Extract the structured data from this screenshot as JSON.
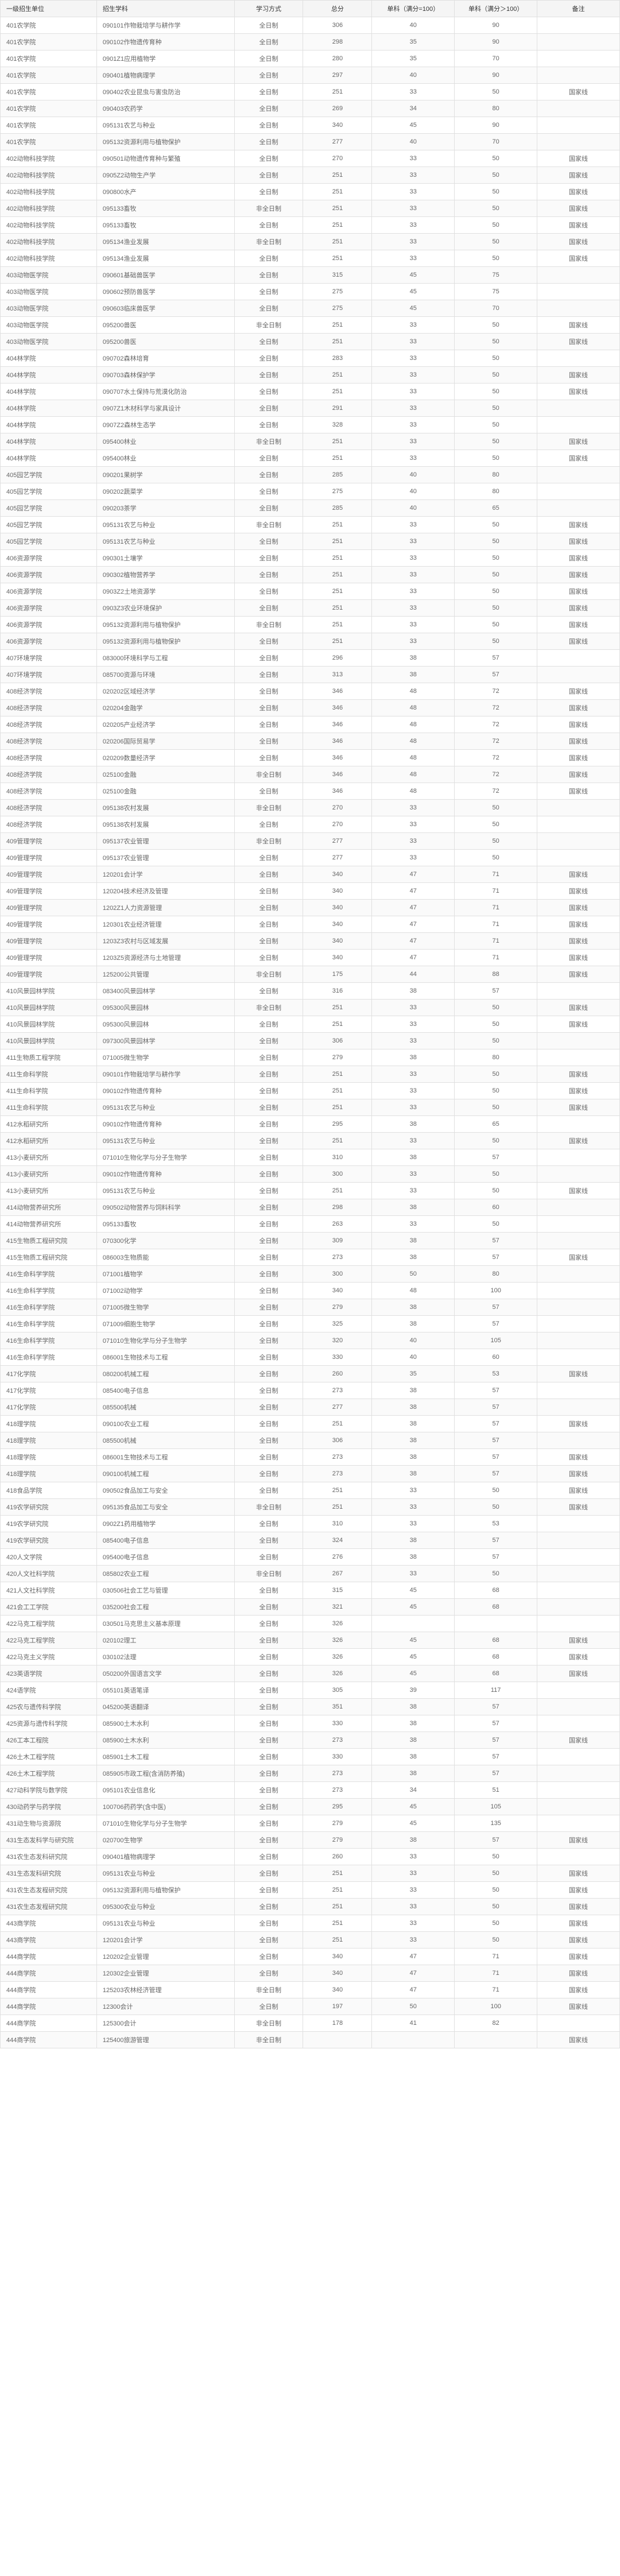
{
  "headers": [
    "一级招生单位",
    "招生学科",
    "学习方式",
    "总分",
    "单科（满分=100）",
    "单科（满分＞100）",
    "备注"
  ],
  "rows": [
    [
      "401农学院",
      "090101作物栽培学与耕作学",
      "全日制",
      "306",
      "40",
      "90",
      ""
    ],
    [
      "401农学院",
      "090102作物遗传育种",
      "全日制",
      "298",
      "35",
      "90",
      ""
    ],
    [
      "401农学院",
      "0901Z1应用植物学",
      "全日制",
      "280",
      "35",
      "70",
      ""
    ],
    [
      "401农学院",
      "090401植物病理学",
      "全日制",
      "297",
      "40",
      "90",
      ""
    ],
    [
      "401农学院",
      "090402农业昆虫与害虫防治",
      "全日制",
      "251",
      "33",
      "50",
      "国家线"
    ],
    [
      "401农学院",
      "090403农药学",
      "全日制",
      "269",
      "34",
      "80",
      ""
    ],
    [
      "401农学院",
      "095131农艺与种业",
      "全日制",
      "340",
      "45",
      "90",
      ""
    ],
    [
      "401农学院",
      "095132资源利用与植物保护",
      "全日制",
      "277",
      "40",
      "70",
      ""
    ],
    [
      "402动物科技学院",
      "090501动物遗传育种与繁殖",
      "全日制",
      "270",
      "33",
      "50",
      "国家线"
    ],
    [
      "402动物科技学院",
      "0905Z2动物生产学",
      "全日制",
      "251",
      "33",
      "50",
      "国家线"
    ],
    [
      "402动物科技学院",
      "090800水产",
      "全日制",
      "251",
      "33",
      "50",
      "国家线"
    ],
    [
      "402动物科技学院",
      "095133畜牧",
      "非全日制",
      "251",
      "33",
      "50",
      "国家线"
    ],
    [
      "402动物科技学院",
      "095133畜牧",
      "全日制",
      "251",
      "33",
      "50",
      "国家线"
    ],
    [
      "402动物科技学院",
      "095134渔业发展",
      "非全日制",
      "251",
      "33",
      "50",
      "国家线"
    ],
    [
      "402动物科技学院",
      "095134渔业发展",
      "全日制",
      "251",
      "33",
      "50",
      "国家线"
    ],
    [
      "403动物医学院",
      "090601基础兽医学",
      "全日制",
      "315",
      "45",
      "75",
      ""
    ],
    [
      "403动物医学院",
      "090602预防兽医学",
      "全日制",
      "275",
      "45",
      "75",
      ""
    ],
    [
      "403动物医学院",
      "090603临床兽医学",
      "全日制",
      "275",
      "45",
      "70",
      ""
    ],
    [
      "403动物医学院",
      "095200兽医",
      "非全日制",
      "251",
      "33",
      "50",
      "国家线"
    ],
    [
      "403动物医学院",
      "095200兽医",
      "全日制",
      "251",
      "33",
      "50",
      "国家线"
    ],
    [
      "404林学院",
      "090702森林培育",
      "全日制",
      "283",
      "33",
      "50",
      ""
    ],
    [
      "404林学院",
      "090703森林保护学",
      "全日制",
      "251",
      "33",
      "50",
      "国家线"
    ],
    [
      "404林学院",
      "090707水土保持与荒漠化防治",
      "全日制",
      "251",
      "33",
      "50",
      "国家线"
    ],
    [
      "404林学院",
      "0907Z1木材科学与家具设计",
      "全日制",
      "291",
      "33",
      "50",
      ""
    ],
    [
      "404林学院",
      "0907Z2森林生态学",
      "全日制",
      "328",
      "33",
      "50",
      ""
    ],
    [
      "404林学院",
      "095400林业",
      "非全日制",
      "251",
      "33",
      "50",
      "国家线"
    ],
    [
      "404林学院",
      "095400林业",
      "全日制",
      "251",
      "33",
      "50",
      "国家线"
    ],
    [
      "405园艺学院",
      "090201果树学",
      "全日制",
      "285",
      "40",
      "80",
      ""
    ],
    [
      "405园艺学院",
      "090202蔬菜学",
      "全日制",
      "275",
      "40",
      "80",
      ""
    ],
    [
      "405园艺学院",
      "090203茶学",
      "全日制",
      "285",
      "40",
      "65",
      ""
    ],
    [
      "405园艺学院",
      "095131农艺与种业",
      "非全日制",
      "251",
      "33",
      "50",
      "国家线"
    ],
    [
      "405园艺学院",
      "095131农艺与种业",
      "全日制",
      "251",
      "33",
      "50",
      "国家线"
    ],
    [
      "406资源学院",
      "090301土壤学",
      "全日制",
      "251",
      "33",
      "50",
      "国家线"
    ],
    [
      "406资源学院",
      "090302植物营养学",
      "全日制",
      "251",
      "33",
      "50",
      "国家线"
    ],
    [
      "406资源学院",
      "0903Z2土地资源学",
      "全日制",
      "251",
      "33",
      "50",
      "国家线"
    ],
    [
      "406资源学院",
      "0903Z3农业环境保护",
      "全日制",
      "251",
      "33",
      "50",
      "国家线"
    ],
    [
      "406资源学院",
      "095132资源利用与植物保护",
      "非全日制",
      "251",
      "33",
      "50",
      "国家线"
    ],
    [
      "406资源学院",
      "095132资源利用与植物保护",
      "全日制",
      "251",
      "33",
      "50",
      "国家线"
    ],
    [
      "407环境学院",
      "083000环境科学与工程",
      "全日制",
      "296",
      "38",
      "57",
      ""
    ],
    [
      "407环境学院",
      "085700资源与环境",
      "全日制",
      "313",
      "38",
      "57",
      ""
    ],
    [
      "408经济学院",
      "020202区域经济学",
      "全日制",
      "346",
      "48",
      "72",
      "国家线"
    ],
    [
      "408经济学院",
      "020204金融学",
      "全日制",
      "346",
      "48",
      "72",
      "国家线"
    ],
    [
      "408经济学院",
      "020205产业经济学",
      "全日制",
      "346",
      "48",
      "72",
      "国家线"
    ],
    [
      "408经济学院",
      "020206国际贸易学",
      "全日制",
      "346",
      "48",
      "72",
      "国家线"
    ],
    [
      "408经济学院",
      "020209数量经济学",
      "全日制",
      "346",
      "48",
      "72",
      "国家线"
    ],
    [
      "408经济学院",
      "025100金融",
      "非全日制",
      "346",
      "48",
      "72",
      "国家线"
    ],
    [
      "408经济学院",
      "025100金融",
      "全日制",
      "346",
      "48",
      "72",
      "国家线"
    ],
    [
      "408经济学院",
      "095138农村发展",
      "非全日制",
      "270",
      "33",
      "50",
      ""
    ],
    [
      "408经济学院",
      "095138农村发展",
      "全日制",
      "270",
      "33",
      "50",
      ""
    ],
    [
      "409管理学院",
      "095137农业管理",
      "非全日制",
      "277",
      "33",
      "50",
      ""
    ],
    [
      "409管理学院",
      "095137农业管理",
      "全日制",
      "277",
      "33",
      "50",
      ""
    ],
    [
      "409管理学院",
      "120201会计学",
      "全日制",
      "340",
      "47",
      "71",
      "国家线"
    ],
    [
      "409管理学院",
      "120204技术经济及管理",
      "全日制",
      "340",
      "47",
      "71",
      "国家线"
    ],
    [
      "409管理学院",
      "1202Z1人力资源管理",
      "全日制",
      "340",
      "47",
      "71",
      "国家线"
    ],
    [
      "409管理学院",
      "120301农业经济管理",
      "全日制",
      "340",
      "47",
      "71",
      "国家线"
    ],
    [
      "409管理学院",
      "1203Z3农村与区域发展",
      "全日制",
      "340",
      "47",
      "71",
      "国家线"
    ],
    [
      "409管理学院",
      "1203Z5资源经济与土地管理",
      "全日制",
      "340",
      "47",
      "71",
      "国家线"
    ],
    [
      "409管理学院",
      "125200公共管理",
      "非全日制",
      "175",
      "44",
      "88",
      "国家线"
    ],
    [
      "410风景园林学院",
      "083400风景园林学",
      "全日制",
      "316",
      "38",
      "57",
      ""
    ],
    [
      "410风景园林学院",
      "095300风景园林",
      "非全日制",
      "251",
      "33",
      "50",
      "国家线"
    ],
    [
      "410风景园林学院",
      "095300风景园林",
      "全日制",
      "251",
      "33",
      "50",
      "国家线"
    ],
    [
      "410风景园林学院",
      "097300风景园林学",
      "全日制",
      "306",
      "33",
      "50",
      ""
    ],
    [
      "411生物质工程学院",
      "071005微生物学",
      "全日制",
      "279",
      "38",
      "80",
      ""
    ],
    [
      "411生命科学院",
      "090101作物栽培学与耕作学",
      "全日制",
      "251",
      "33",
      "50",
      "国家线"
    ],
    [
      "411生命科学院",
      "090102作物遗传育种",
      "全日制",
      "251",
      "33",
      "50",
      "国家线"
    ],
    [
      "411生命科学院",
      "095131农艺与种业",
      "全日制",
      "251",
      "33",
      "50",
      "国家线"
    ],
    [
      "412水稻研究所",
      "090102作物遗传育种",
      "全日制",
      "295",
      "38",
      "65",
      ""
    ],
    [
      "412水稻研究所",
      "095131农艺与种业",
      "全日制",
      "251",
      "33",
      "50",
      "国家线"
    ],
    [
      "413小麦研究所",
      "071010生物化学与分子生物学",
      "全日制",
      "310",
      "38",
      "57",
      ""
    ],
    [
      "413小麦研究所",
      "090102作物遗传育种",
      "全日制",
      "300",
      "33",
      "50",
      ""
    ],
    [
      "413小麦研究所",
      "095131农艺与种业",
      "全日制",
      "251",
      "33",
      "50",
      "国家线"
    ],
    [
      "414动物营养研究所",
      "090502动物营养与饲料科学",
      "全日制",
      "298",
      "38",
      "60",
      ""
    ],
    [
      "414动物营养研究所",
      "095133畜牧",
      "全日制",
      "263",
      "33",
      "50",
      ""
    ],
    [
      "415生物质工程研究院",
      "070300化学",
      "全日制",
      "309",
      "38",
      "57",
      ""
    ],
    [
      "415生物质工程研究院",
      "086003生物质能",
      "全日制",
      "273",
      "38",
      "57",
      "国家线"
    ],
    [
      "416生命科学学院",
      "071001植物学",
      "全日制",
      "300",
      "50",
      "80",
      ""
    ],
    [
      "416生命科学学院",
      "071002动物学",
      "全日制",
      "340",
      "48",
      "100",
      ""
    ],
    [
      "416生命科学学院",
      "071005微生物学",
      "全日制",
      "279",
      "38",
      "57",
      ""
    ],
    [
      "416生命科学学院",
      "071009细胞生物学",
      "全日制",
      "325",
      "38",
      "57",
      ""
    ],
    [
      "416生命科学学院",
      "071010生物化学与分子生物学",
      "全日制",
      "320",
      "40",
      "105",
      ""
    ],
    [
      "416生命科学学院",
      "086001生物技术与工程",
      "全日制",
      "330",
      "40",
      "60",
      ""
    ],
    [
      "417化学院",
      "080200机械工程",
      "全日制",
      "260",
      "35",
      "53",
      "国家线"
    ],
    [
      "417化学院",
      "085400电子信息",
      "全日制",
      "273",
      "38",
      "57",
      ""
    ],
    [
      "417化学院",
      "085500机械",
      "全日制",
      "277",
      "38",
      "57",
      ""
    ],
    [
      "418理学院",
      "090100农业工程",
      "全日制",
      "251",
      "38",
      "57",
      "国家线"
    ],
    [
      "418理学院",
      "085500机械",
      "全日制",
      "306",
      "38",
      "57",
      ""
    ],
    [
      "418理学院",
      "086001生物技术与工程",
      "全日制",
      "273",
      "38",
      "57",
      "国家线"
    ],
    [
      "418理学院",
      "090100机械工程",
      "全日制",
      "273",
      "38",
      "57",
      "国家线"
    ],
    [
      "418食品学院",
      "090502食品加工与安全",
      "全日制",
      "251",
      "33",
      "50",
      "国家线"
    ],
    [
      "419农学研究院",
      "095135食品加工与安全",
      "非全日制",
      "251",
      "33",
      "50",
      "国家线"
    ],
    [
      "419农学研究院",
      "0902Z1药用植物学",
      "全日制",
      "310",
      "33",
      "53",
      ""
    ],
    [
      "419农学研究院",
      "085400电子信息",
      "全日制",
      "324",
      "38",
      "57",
      ""
    ],
    [
      "420人文学院",
      "095400电子信息",
      "全日制",
      "276",
      "38",
      "57",
      ""
    ],
    [
      "420人文社科学院",
      "085802农业工程",
      "非全日制",
      "267",
      "33",
      "50",
      ""
    ],
    [
      "421人文社科学院",
      "030506社会工艺与管理",
      "全日制",
      "315",
      "45",
      "68",
      ""
    ],
    [
      "421会工工学院",
      "035200社会工程",
      "全日制",
      "321",
      "45",
      "68",
      ""
    ],
    [
      "422马克工程学院",
      "030501马克思主义基本原理",
      "全日制",
      "326",
      "",
      "",
      ""
    ],
    [
      "422马克工程学院",
      "020102理工",
      "全日制",
      "326",
      "45",
      "68",
      "国家线"
    ],
    [
      "422马克主义学院",
      "030102法理",
      "全日制",
      "326",
      "45",
      "68",
      "国家线"
    ],
    [
      "423英语学院",
      "050200外国语言文学",
      "全日制",
      "326",
      "45",
      "68",
      "国家线"
    ],
    [
      "424语学院",
      "055101英语笔译",
      "全日制",
      "305",
      "39",
      "117",
      ""
    ],
    [
      "425农与遗传科学院",
      "045200英语翻译",
      "全日制",
      "351",
      "38",
      "57",
      ""
    ],
    [
      "425资源与遗传科学院",
      "085900土木水利",
      "全日制",
      "330",
      "38",
      "57",
      ""
    ],
    [
      "426工本工程院",
      "085900土木水利",
      "全日制",
      "273",
      "38",
      "57",
      "国家线"
    ],
    [
      "426土木工程学院",
      "085901土木工程",
      "全日制",
      "330",
      "38",
      "57",
      ""
    ],
    [
      "426土木工程学院",
      "085905市政工程(含消防养殖)",
      "全日制",
      "273",
      "38",
      "57",
      ""
    ],
    [
      "427动科学院与数学院",
      "095101农业信息化",
      "全日制",
      "273",
      "34",
      "51",
      ""
    ],
    [
      "430动药学与药学院",
      "100706药药学(含中医)",
      "全日制",
      "295",
      "45",
      "105",
      ""
    ],
    [
      "431动生物与资源院",
      "071010生物化学与分子生物学",
      "全日制",
      "279",
      "45",
      "135",
      ""
    ],
    [
      "431生态发科学与研究院",
      "020700生物学",
      "全日制",
      "279",
      "38",
      "57",
      "国家线"
    ],
    [
      "431农生态发科研究院",
      "090401植物病理学",
      "全日制",
      "260",
      "33",
      "50",
      ""
    ],
    [
      "431生态发科研究院",
      "095131农业与种业",
      "全日制",
      "251",
      "33",
      "50",
      "国家线"
    ],
    [
      "431农生态发程研究院",
      "095132资源利用与植物保护",
      "全日制",
      "251",
      "33",
      "50",
      "国家线"
    ],
    [
      "431农生态发程研究院",
      "095300农业与种业",
      "全日制",
      "251",
      "33",
      "50",
      "国家线"
    ],
    [
      "443商学院",
      "095131农业与种业",
      "全日制",
      "251",
      "33",
      "50",
      "国家线"
    ],
    [
      "443商学院",
      "120201会计学",
      "全日制",
      "251",
      "33",
      "50",
      "国家线"
    ],
    [
      "444商学院",
      "120202企业管理",
      "全日制",
      "340",
      "47",
      "71",
      "国家线"
    ],
    [
      "444商学院",
      "120302企业管理",
      "全日制",
      "340",
      "47",
      "71",
      "国家线"
    ],
    [
      "444商学院",
      "125203农林经济管理",
      "非全日制",
      "340",
      "47",
      "71",
      "国家线"
    ],
    [
      "444商学院",
      "12300会计",
      "全日制",
      "197",
      "50",
      "100",
      "国家线"
    ],
    [
      "444商学院",
      "125300会计",
      "非全日制",
      "178",
      "41",
      "82",
      ""
    ],
    [
      "444商学院",
      "125400旅游管理",
      "非全日制",
      "",
      "",
      "",
      "国家线"
    ]
  ]
}
